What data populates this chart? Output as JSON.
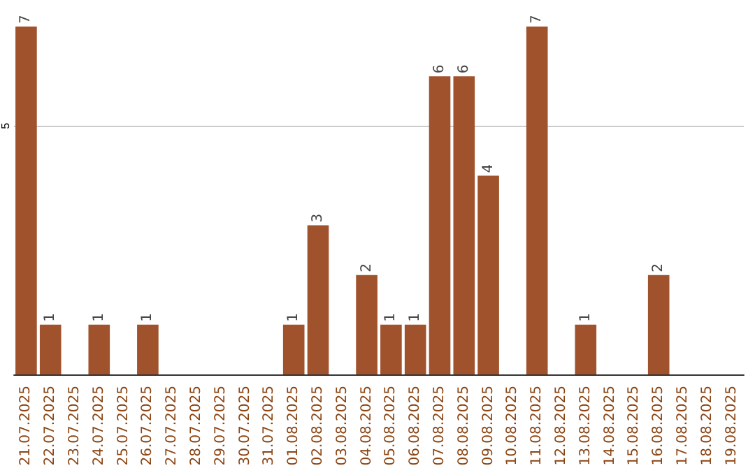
{
  "chart_data": {
    "type": "bar",
    "categories": [
      "21.07.2025",
      "22.07.2025",
      "23.07.2025",
      "24.07.2025",
      "25.07.2025",
      "26.07.2025",
      "27.07.2025",
      "28.07.2025",
      "29.07.2025",
      "30.07.2025",
      "31.07.2025",
      "01.08.2025",
      "02.08.2025",
      "03.08.2025",
      "04.08.2025",
      "05.08.2025",
      "06.08.2025",
      "07.08.2025",
      "08.08.2025",
      "09.08.2025",
      "10.08.2025",
      "11.08.2025",
      "12.08.2025",
      "13.08.2025",
      "14.08.2025",
      "15.08.2025",
      "16.08.2025",
      "17.08.2025",
      "18.08.2025",
      "19.08.2025"
    ],
    "values": [
      7,
      1,
      0,
      1,
      0,
      1,
      0,
      0,
      0,
      0,
      0,
      1,
      3,
      0,
      2,
      1,
      1,
      6,
      6,
      4,
      0,
      7,
      0,
      1,
      0,
      0,
      2,
      0,
      0,
      0
    ],
    "value_labels": [
      "7",
      "1",
      null,
      "1",
      null,
      "1",
      null,
      null,
      null,
      null,
      null,
      "1",
      "3",
      null,
      "2",
      "1",
      "1",
      "6",
      "6",
      "4",
      null,
      "7",
      null,
      "1",
      null,
      null,
      "2",
      null,
      null,
      null
    ],
    "color": "#a0522d",
    "ylim": [
      0,
      7
    ],
    "yticks": [
      5
    ],
    "grid": "y"
  }
}
